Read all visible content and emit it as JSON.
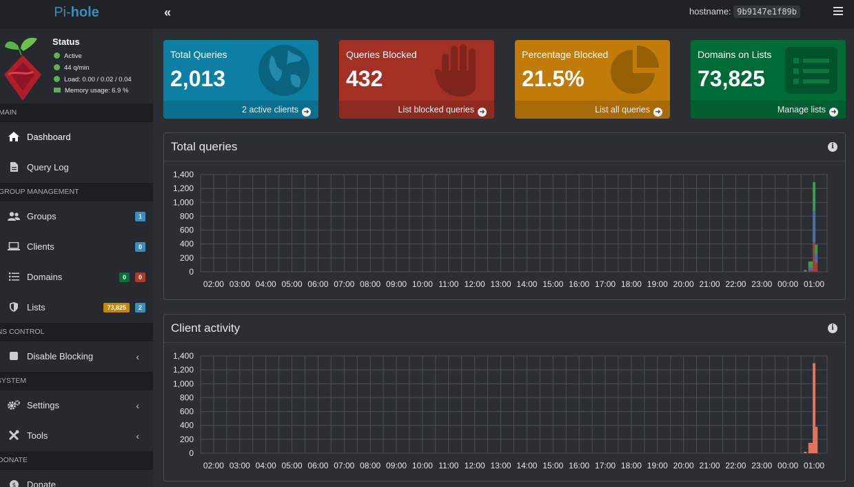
{
  "brand": {
    "prefix": "Pi-",
    "name": "hole"
  },
  "hostname": {
    "label": "hostname:",
    "value": "9b9147e1f89b"
  },
  "status": {
    "title": "Status",
    "active": "Active",
    "rate": "44 q/min",
    "load": "Load: 0.00 / 0.02 / 0.04",
    "memory": "Memory usage: 6.9 %"
  },
  "sidebar": {
    "main_header": "MAIN",
    "dashboard": "Dashboard",
    "query_log": "Query Log",
    "group_header": "GROUP MANAGEMENT",
    "groups": "Groups",
    "groups_badge": "1",
    "clients": "Clients",
    "clients_badge": "0",
    "domains": "Domains",
    "domains_badge_allow": "0",
    "domains_badge_deny": "0",
    "lists": "Lists",
    "lists_badge_count": "73,825",
    "lists_badge_lists": "2",
    "dns_header": "DNS CONTROL",
    "disable_blocking": "Disable Blocking",
    "system_header": "SYSTEM",
    "settings": "Settings",
    "tools": "Tools",
    "donate_header": "DONATE",
    "donate": "Donate"
  },
  "stats": {
    "total": {
      "title": "Total Queries",
      "value": "2,013",
      "footer": "2 active clients"
    },
    "blocked": {
      "title": "Queries Blocked",
      "value": "432",
      "footer": "List blocked queries"
    },
    "percent": {
      "title": "Percentage Blocked",
      "value": "21.5%",
      "footer": "List all queries"
    },
    "domains": {
      "title": "Domains on Lists",
      "value": "73,825",
      "footer": "Manage lists"
    }
  },
  "colors": {
    "permitted": "#3d9c4c",
    "blocked": "#b0392e",
    "cached": "#4a6fa0",
    "client1": "#e8705c",
    "client2": "#d9a0c8"
  },
  "charts": {
    "total_title": "Total queries",
    "client_title": "Client activity"
  },
  "chart_data": [
    {
      "type": "bar",
      "title": "Total queries",
      "stacked": true,
      "ylim": [
        0,
        1400
      ],
      "yticks": [
        0,
        200,
        400,
        600,
        800,
        1000,
        1200,
        1400
      ],
      "x": [
        "02:00",
        "03:00",
        "04:00",
        "05:00",
        "06:00",
        "07:00",
        "08:00",
        "09:00",
        "10:00",
        "11:00",
        "12:00",
        "13:00",
        "14:00",
        "15:00",
        "16:00",
        "17:00",
        "18:00",
        "19:00",
        "20:00",
        "21:00",
        "22:00",
        "23:00",
        "00:00",
        "01:00"
      ],
      "bins": [
        {
          "time": "00:40",
          "blocked": 0,
          "cached": 10,
          "permitted": 15
        },
        {
          "time": "00:50",
          "blocked": 20,
          "cached": 40,
          "permitted": 90
        },
        {
          "time": "00:55",
          "blocked": 20,
          "cached": 40,
          "permitted": 90
        },
        {
          "time": "01:00",
          "blocked": 420,
          "cached": 460,
          "permitted": 410
        },
        {
          "time": "01:05",
          "blocked": 120,
          "cached": 140,
          "permitted": 130
        }
      ]
    },
    {
      "type": "bar",
      "title": "Client activity",
      "stacked": true,
      "ylim": [
        0,
        1400
      ],
      "yticks": [
        0,
        200,
        400,
        600,
        800,
        1000,
        1200,
        1400
      ],
      "x": [
        "02:00",
        "03:00",
        "04:00",
        "05:00",
        "06:00",
        "07:00",
        "08:00",
        "09:00",
        "10:00",
        "11:00",
        "12:00",
        "13:00",
        "14:00",
        "15:00",
        "16:00",
        "17:00",
        "18:00",
        "19:00",
        "20:00",
        "21:00",
        "22:00",
        "23:00",
        "00:00",
        "01:00"
      ],
      "bins": [
        {
          "time": "00:40",
          "client1": 20,
          "client2": 0
        },
        {
          "time": "00:50",
          "client1": 150,
          "client2": 0
        },
        {
          "time": "00:55",
          "client1": 150,
          "client2": 0
        },
        {
          "time": "01:00",
          "client1": 1290,
          "client2": 5
        },
        {
          "time": "01:05",
          "client1": 380,
          "client2": 0
        }
      ]
    }
  ]
}
